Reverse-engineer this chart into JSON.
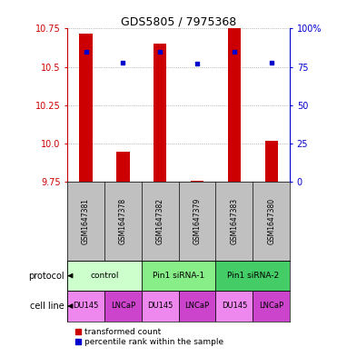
{
  "title": "GDS5805 / 7975368",
  "samples": [
    "GSM1647381",
    "GSM1647378",
    "GSM1647382",
    "GSM1647379",
    "GSM1647383",
    "GSM1647380"
  ],
  "red_values": [
    10.72,
    9.95,
    10.65,
    9.76,
    10.75,
    10.02
  ],
  "blue_values": [
    85,
    78,
    85,
    77,
    85,
    78
  ],
  "ylim_left": [
    9.75,
    10.75
  ],
  "ylim_right": [
    0,
    100
  ],
  "yticks_left": [
    9.75,
    10.0,
    10.25,
    10.5,
    10.75
  ],
  "yticks_right": [
    0,
    25,
    50,
    75,
    100
  ],
  "protocol_groups": [
    {
      "label": "control",
      "span": [
        0,
        2
      ],
      "color": "#ccffcc"
    },
    {
      "label": "Pin1 siRNA-1",
      "span": [
        2,
        4
      ],
      "color": "#88ee88"
    },
    {
      "label": "Pin1 siRNA-2",
      "span": [
        4,
        6
      ],
      "color": "#44cc66"
    }
  ],
  "cell_lines": [
    "DU145",
    "LNCaP",
    "DU145",
    "LNCaP",
    "DU145",
    "LNCaP"
  ],
  "cell_line_colors": [
    "#ee88ee",
    "#cc44cc",
    "#ee88ee",
    "#cc44cc",
    "#ee88ee",
    "#cc44cc"
  ],
  "bar_color": "#cc0000",
  "dot_color": "#0000cc",
  "bar_width": 0.35,
  "bg_color": "#ffffff",
  "grid_color": "#888888",
  "sample_box_color": "#c0c0c0",
  "legend_red_label": "transformed count",
  "legend_blue_label": "percentile rank within the sample"
}
